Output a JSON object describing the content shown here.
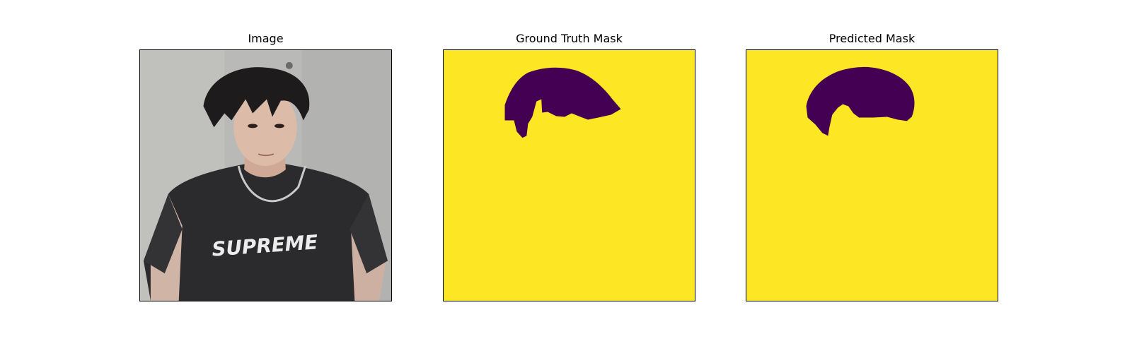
{
  "figure": {
    "panels": [
      {
        "title": "Image",
        "content": "photo"
      },
      {
        "title": "Ground Truth Mask",
        "content": "mask"
      },
      {
        "title": "Predicted Mask",
        "content": "mask"
      }
    ]
  },
  "photo": {
    "shirt_text": "SUPREME"
  },
  "colors": {
    "mask_background": "#fde725",
    "mask_foreground": "#440154",
    "wall": "#b8b8b6",
    "shirt": "#2a2a2c",
    "hair": "#1c1a1b",
    "skin": "#d9b8a6"
  }
}
